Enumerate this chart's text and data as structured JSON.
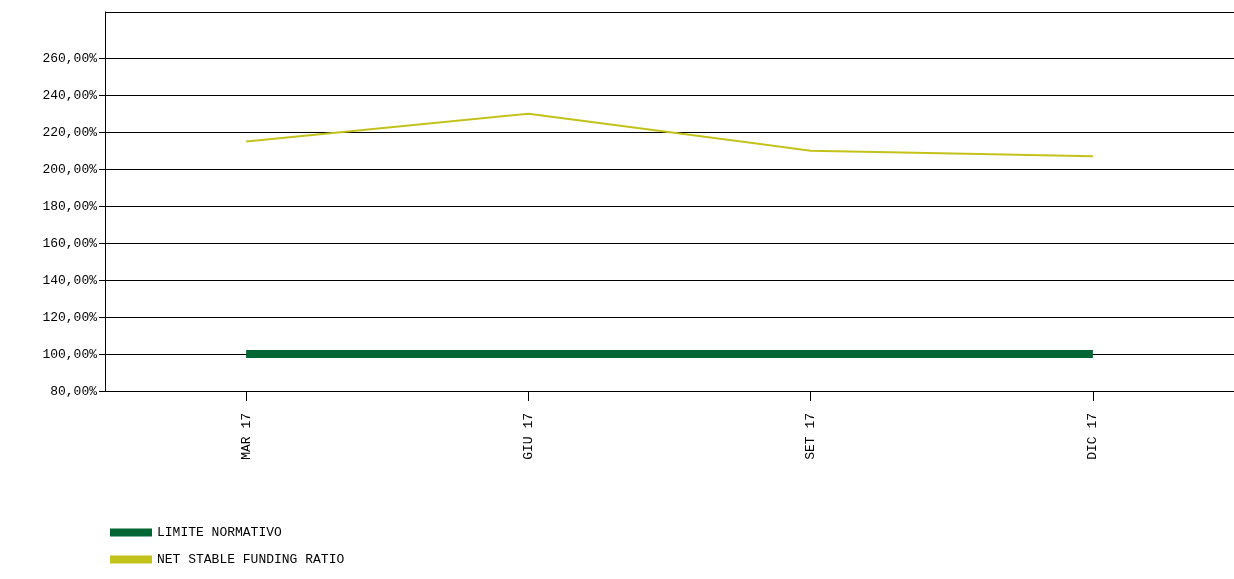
{
  "chart_data": {
    "type": "line",
    "categories": [
      "MAR 17",
      "GIU 17",
      "SET 17",
      "DIC 17"
    ],
    "series": [
      {
        "name": "LIMITE NORMATIVO",
        "color": "#006633",
        "values": [
          100,
          100,
          100,
          100
        ]
      },
      {
        "name": "NET STABLE FUNDING RATIO",
        "color": "#c2c21a",
        "values": [
          215,
          230,
          210,
          207
        ]
      }
    ],
    "ylim": [
      80,
      285
    ],
    "yticks": [
      {
        "value": 80,
        "label": "80,00%"
      },
      {
        "value": 100,
        "label": "100,00%"
      },
      {
        "value": 120,
        "label": "120,00%"
      },
      {
        "value": 140,
        "label": "140,00%"
      },
      {
        "value": 160,
        "label": "160,00%"
      },
      {
        "value": 180,
        "label": "180,00%"
      },
      {
        "value": 200,
        "label": "200,00%"
      },
      {
        "value": 220,
        "label": "220,00%"
      },
      {
        "value": 240,
        "label": "240,00%"
      },
      {
        "value": 260,
        "label": "260,00%"
      }
    ],
    "grid": "y",
    "legend": "bottom left",
    "marker": "none",
    "line_style": "solid"
  }
}
